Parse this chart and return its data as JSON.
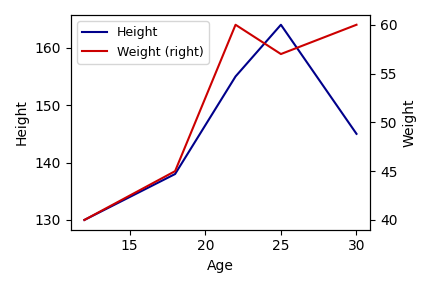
{
  "age": [
    12,
    18,
    22,
    25,
    30
  ],
  "height": [
    130,
    138,
    155,
    164,
    145
  ],
  "weight": [
    40,
    45,
    60,
    57,
    60
  ],
  "height_color": "#00008B",
  "weight_color": "#CC0000",
  "xlabel": "Age",
  "ylabel_left": "Height",
  "ylabel_right": "Weight",
  "legend_labels": [
    "Height",
    "Weight (right)"
  ],
  "figsize": [
    4.32,
    2.88
  ],
  "dpi": 100
}
